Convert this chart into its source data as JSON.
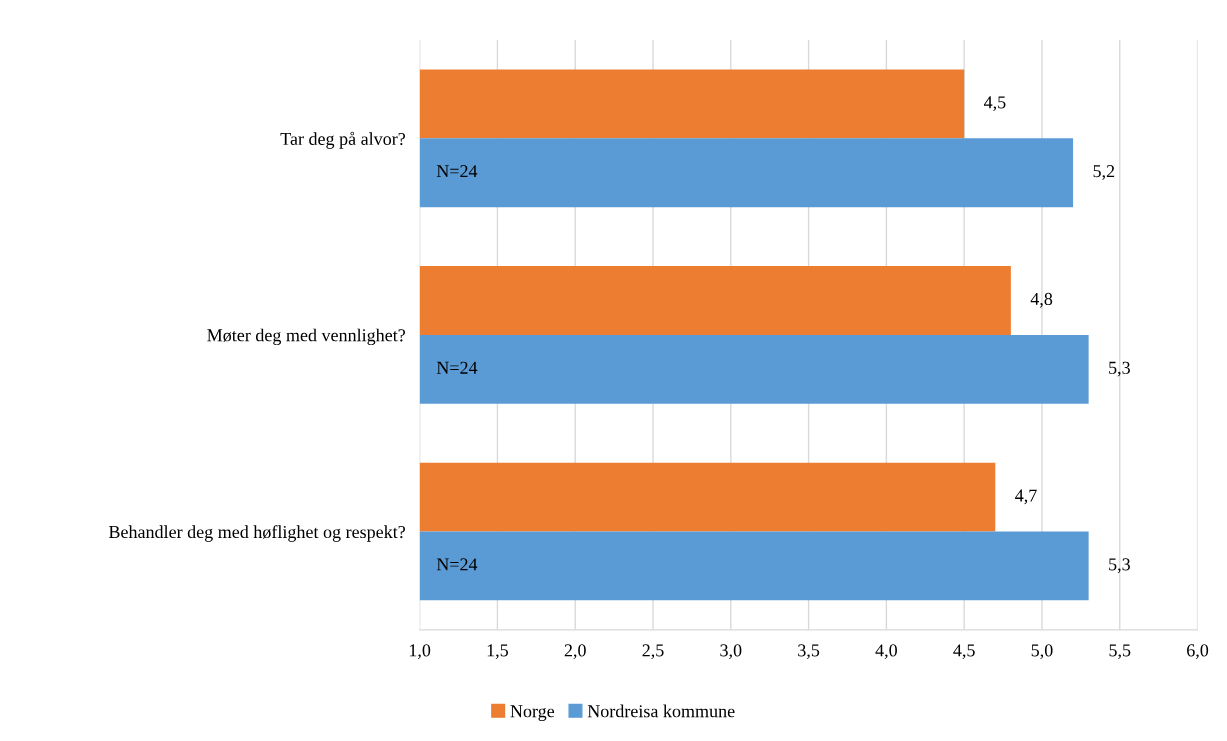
{
  "chart_data": {
    "type": "bar",
    "orientation": "horizontal",
    "categories": [
      "Tar deg på alvor?",
      "Møter deg med vennlighet?",
      "Behandler deg med høflighet og respekt?"
    ],
    "series": [
      {
        "name": "Norge",
        "color": "#ed7d31",
        "values": [
          4.5,
          4.8,
          4.7
        ],
        "value_labels": [
          "4,5",
          "4,8",
          "4,7"
        ]
      },
      {
        "name": "Nordreisa kommune",
        "color": "#5b9bd5",
        "values": [
          5.2,
          5.3,
          5.3
        ],
        "value_labels": [
          "5,2",
          "5,3",
          "5,3"
        ]
      }
    ],
    "xlim": [
      1,
      6
    ],
    "xticks": [
      {
        "value": 1,
        "label": "1,0"
      },
      {
        "value": 1.5,
        "label": "1,5"
      },
      {
        "value": 2,
        "label": "2,0"
      },
      {
        "value": 2.5,
        "label": "2,5"
      },
      {
        "value": 3,
        "label": "3,0"
      },
      {
        "value": 3.5,
        "label": "3,5"
      },
      {
        "value": 4,
        "label": "4,0"
      },
      {
        "value": 4.5,
        "label": "4,5"
      },
      {
        "value": 5,
        "label": "5,0"
      },
      {
        "value": 5.5,
        "label": "5,5"
      },
      {
        "value": 6,
        "label": "6,0"
      }
    ],
    "annotations": [
      "N=24",
      "N=24",
      "N=24"
    ],
    "grid": "x",
    "legend": "bottom"
  }
}
